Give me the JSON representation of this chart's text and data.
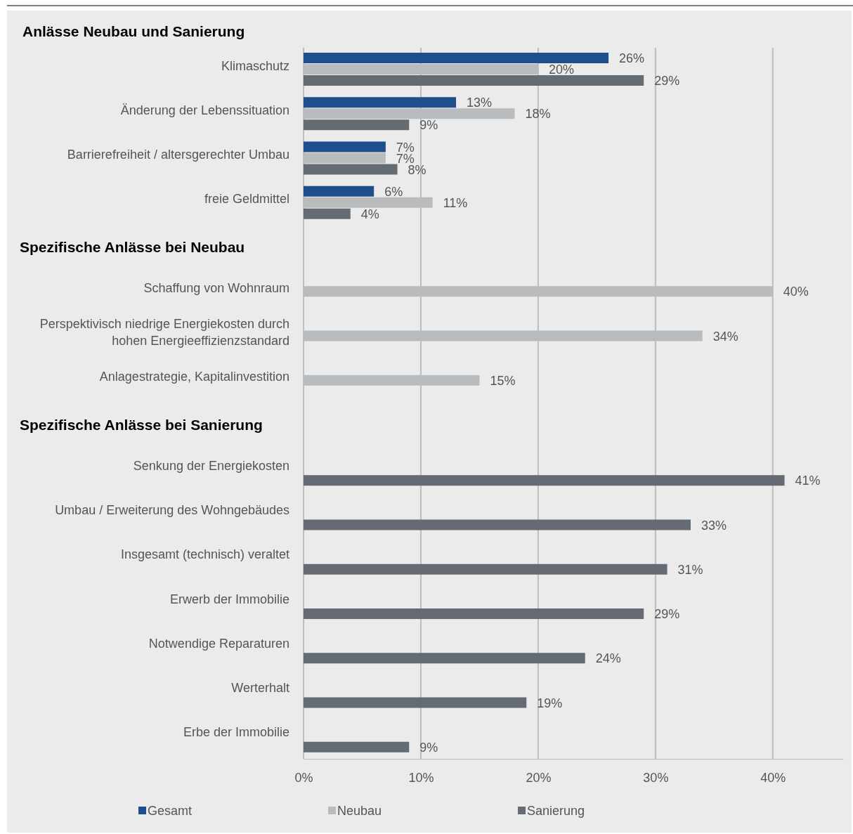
{
  "chart_data": {
    "type": "bar",
    "orientation": "horizontal",
    "categories": [
      "Klimaschutz",
      "Änderung der Lebenssituation",
      "Barrierefreiheit / altersgerechter Umbau",
      "freie Geldmittel",
      null,
      "Schaffung von Wohnraum",
      "Perspektivisch niedrige Energiekosten durch hohen Energieeffizienzstandard",
      "Anlagestrategie, Kapitalinvestition",
      null,
      "Senkung der Energiekosten",
      "Umbau / Erweiterung des Wohngebäudes",
      "Insgesamt (technisch) veraltet",
      "Erwerb der Immobilie",
      "Notwendige Reparaturen",
      "Werterhalt",
      "Erbe der Immobilie"
    ],
    "series": [
      {
        "name": "Gesamt",
        "color": "#1f4e8c",
        "values": [
          26,
          13,
          7,
          6,
          null,
          null,
          null,
          null,
          null,
          null,
          null,
          null,
          null,
          null,
          null,
          null
        ],
        "value_labels": [
          "26%",
          "13%",
          "7%",
          "6%",
          null,
          null,
          null,
          null,
          null,
          null,
          null,
          null,
          null,
          null,
          null,
          null
        ]
      },
      {
        "name": "Neubau",
        "color": "#b8bcbf",
        "values": [
          20,
          18,
          7,
          11,
          null,
          40,
          34,
          15,
          null,
          null,
          null,
          null,
          null,
          null,
          null,
          null
        ],
        "value_labels": [
          "20%",
          "18%",
          "7%",
          "11%",
          null,
          "40%",
          "34%",
          "15%",
          null,
          null,
          null,
          null,
          null,
          null,
          null,
          null
        ]
      },
      {
        "name": "Sanierung",
        "color": "#646b73",
        "values": [
          29,
          9,
          8,
          4,
          null,
          null,
          null,
          null,
          null,
          41,
          33,
          31,
          29,
          24,
          19,
          9
        ],
        "value_labels": [
          "29%",
          "9%",
          "8%",
          "4%",
          null,
          null,
          null,
          null,
          null,
          "41%",
          "33%",
          "31%",
          "29%",
          "24%",
          "19%",
          "9%"
        ]
      }
    ],
    "xlim": [
      0,
      46
    ],
    "xticks": [
      {
        "value": 0,
        "label": "0%"
      },
      {
        "value": 10,
        "label": "10%"
      },
      {
        "value": 20,
        "label": "20%"
      },
      {
        "value": 30,
        "label": "30%"
      },
      {
        "value": 40,
        "label": "40%"
      }
    ],
    "grid": "x",
    "legend": "bottom",
    "annotations": [
      "Anlässe Neubau und Sanierung",
      "Spezifische Anlässe bei Neubau",
      "Spezifische Anlässe bei Sanierung"
    ]
  }
}
